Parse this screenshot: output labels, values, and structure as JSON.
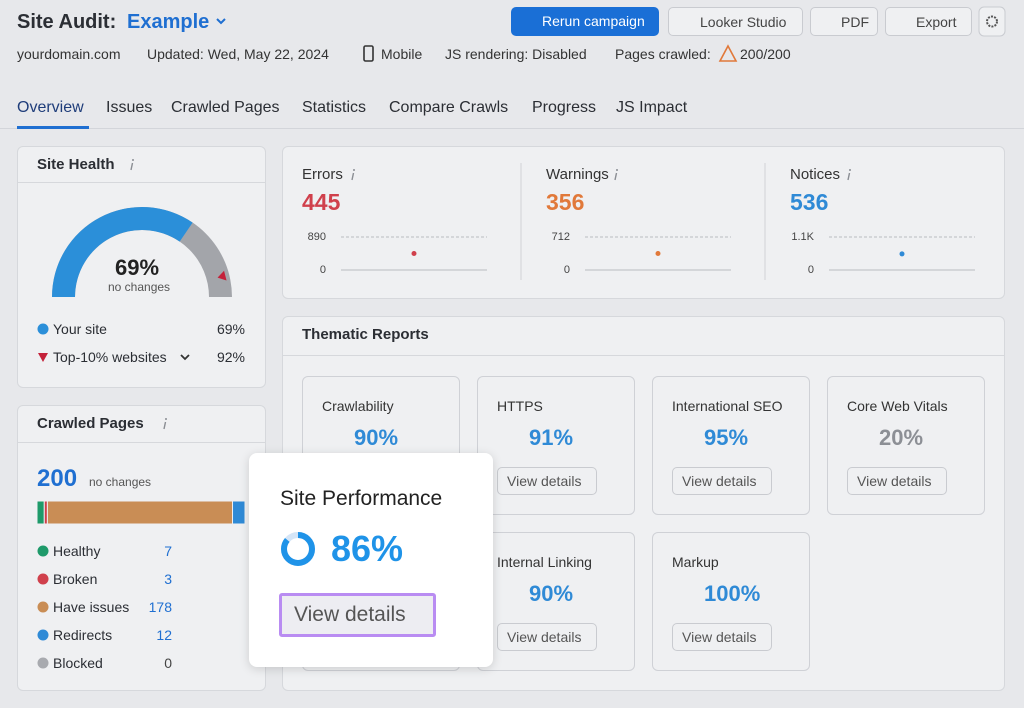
{
  "header": {
    "title": "Site Audit:",
    "project": "Example",
    "buttons": [
      "Rerun campaign",
      "Looker Studio",
      "PDF",
      "Export"
    ]
  },
  "meta": {
    "domain": "yourdomain.com",
    "updated": "Updated: Wed, May 22, 2024",
    "device": "Mobile",
    "js": "JS rendering: Disabled",
    "pages_label": "Pages crawled:",
    "pages": "200/200"
  },
  "tabs": [
    "Overview",
    "Issues",
    "Crawled Pages",
    "Statistics",
    "Compare Crawls",
    "Progress",
    "JS Impact"
  ],
  "site_health": {
    "title": "Site Health",
    "value": 69,
    "label": "69%",
    "note": "no changes",
    "color": "#2b8fd9",
    "legend": [
      {
        "name": "Your site"
      },
      {
        "name": "Top-10% websites",
        "value": 92,
        "label": "92%",
        "color": "#c4213a"
      }
    ]
  },
  "crawled": {
    "title": "Crawled Pages",
    "total": 200,
    "note": "no changes",
    "statuses": [
      {
        "name": "Healthy",
        "value": 7,
        "color": "#1e9a6a"
      },
      {
        "name": "Broken",
        "value": 3,
        "color": "#d0404c"
      },
      {
        "name": "Have issues",
        "value": 178,
        "color": "#c98d55"
      },
      {
        "name": "Redirects",
        "value": 12,
        "color": "#2f8ad6"
      },
      {
        "name": "Blocked",
        "value": 0,
        "color": "#a8aaaf"
      }
    ]
  },
  "metrics": [
    {
      "name": "Errors",
      "value": 445,
      "color": "#d0404c",
      "ylim": [
        0,
        890
      ],
      "yticks": [
        0,
        890
      ]
    },
    {
      "name": "Warnings",
      "value": 356,
      "color": "#e1793a",
      "ylim": [
        0,
        712
      ],
      "yticks": [
        0,
        712
      ]
    },
    {
      "name": "Notices",
      "value": 536,
      "color": "#2f8ad6",
      "ylim": [
        0,
        1100
      ],
      "yticks": [
        0,
        {
          "value": 1100,
          "label": "1.1K"
        }
      ]
    }
  ],
  "thematic": {
    "title": "Thematic Reports",
    "action": "View details",
    "reports": [
      {
        "name": "Crawlability",
        "value": 90,
        "label": "90%",
        "color": "#2f8ad6"
      },
      {
        "name": "HTTPS",
        "value": 91,
        "label": "91%",
        "color": "#2f8ad6"
      },
      {
        "name": "International SEO",
        "value": 95,
        "label": "95%",
        "color": "#2f8ad6"
      },
      {
        "name": "Core Web Vitals",
        "value": 20,
        "label": "20%",
        "color": "#8c8f95"
      },
      {
        "name": "Site Performance",
        "value": 86,
        "label": "86%",
        "color": "#1f93e8"
      },
      {
        "name": "Internal Linking",
        "value": 90,
        "label": "90%",
        "color": "#2f8ad6"
      },
      {
        "name": "Markup",
        "value": 100,
        "label": "100%",
        "color": "#2f8ad6"
      }
    ]
  }
}
